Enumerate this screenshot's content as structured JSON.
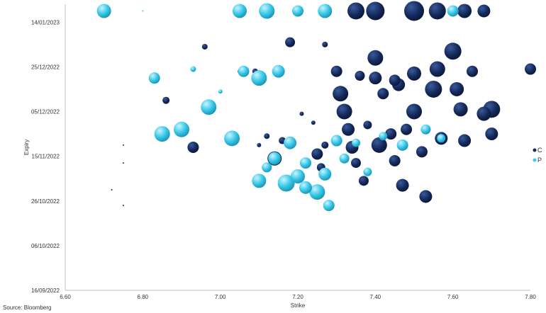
{
  "chart_data": {
    "type": "scatter",
    "title": "",
    "xlabel": "Strike",
    "ylabel": "Expiry",
    "xlim": [
      6.6,
      7.8
    ],
    "x_ticks": [
      "6.60",
      "6.80",
      "7.00",
      "7.20",
      "7.40",
      "7.60",
      "7.80"
    ],
    "y_ticks": [
      "14/01/2023",
      "25/12/2022",
      "05/12/2022",
      "15/11/2022",
      "26/10/2022",
      "06/10/2022",
      "16/09/2022"
    ],
    "ylim": [
      "16/09/2022",
      "22/01/2023"
    ],
    "grid": false,
    "legend_position": "right",
    "source": "Source: Bloomberg",
    "series": [
      {
        "name": "C",
        "color": "#14295a",
        "points": [
          [
            6.75,
            "2022-11-20",
            1
          ],
          [
            6.75,
            "2022-11-12",
            1
          ],
          [
            6.72,
            "2022-10-31",
            1
          ],
          [
            6.75,
            "2022-10-24",
            1
          ],
          [
            6.86,
            "2022-12-10",
            5
          ],
          [
            6.93,
            "2022-11-19",
            8
          ],
          [
            6.96,
            "2023-01-03",
            4
          ],
          [
            7.05,
            "2022-12-23",
            3
          ],
          [
            7.09,
            "2022-12-23",
            4
          ],
          [
            7.1,
            "2022-11-20",
            3
          ],
          [
            7.12,
            "2022-11-24",
            4
          ],
          [
            7.14,
            "2022-11-14",
            10
          ],
          [
            7.16,
            "2022-11-22",
            5
          ],
          [
            7.18,
            "2023-01-05",
            7
          ],
          [
            7.21,
            "2022-12-04",
            3
          ],
          [
            7.24,
            "2022-11-30",
            3
          ],
          [
            7.25,
            "2022-11-16",
            8
          ],
          [
            7.26,
            "2022-11-10",
            6
          ],
          [
            7.27,
            "2023-01-04",
            4
          ],
          [
            7.27,
            "2022-11-20",
            5
          ],
          [
            7.3,
            "2022-12-23",
            8
          ],
          [
            7.31,
            "2022-12-13",
            11
          ],
          [
            7.32,
            "2022-12-05",
            11
          ],
          [
            7.33,
            "2022-11-27",
            9
          ],
          [
            7.34,
            "2022-11-19",
            9
          ],
          [
            7.35,
            "2022-11-12",
            7
          ],
          [
            7.36,
            "2022-12-21",
            7
          ],
          [
            7.37,
            "2022-11-04",
            7
          ],
          [
            7.38,
            "2022-11-29",
            6
          ],
          [
            7.4,
            "2022-12-29",
            11
          ],
          [
            7.4,
            "2022-12-20",
            9
          ],
          [
            7.41,
            "2022-11-20",
            11
          ],
          [
            7.42,
            "2022-12-13",
            8
          ],
          [
            7.44,
            "2022-11-25",
            8
          ],
          [
            7.45,
            "2022-12-19",
            8
          ],
          [
            7.45,
            "2022-11-13",
            8
          ],
          [
            7.46,
            "2022-12-17",
            9
          ],
          [
            7.47,
            "2022-11-02",
            9
          ],
          [
            7.48,
            "2022-11-27",
            8
          ],
          [
            7.5,
            "2022-12-22",
            10
          ],
          [
            7.5,
            "2022-12-05",
            11
          ],
          [
            7.52,
            "2022-11-17",
            8
          ],
          [
            7.53,
            "2022-10-28",
            9
          ],
          [
            7.55,
            "2022-12-15",
            12
          ],
          [
            7.56,
            "2022-12-24",
            11
          ],
          [
            7.57,
            "2022-11-23",
            9
          ],
          [
            7.6,
            "2023-01-01",
            12
          ],
          [
            7.61,
            "2022-12-15",
            10
          ],
          [
            7.62,
            "2022-12-06",
            10
          ],
          [
            7.63,
            "2022-11-22",
            9
          ],
          [
            7.65,
            "2022-12-23",
            8
          ],
          [
            7.68,
            "2022-12-04",
            10
          ],
          [
            7.7,
            "2022-12-06",
            12
          ],
          [
            7.7,
            "2022-11-25",
            9
          ],
          [
            7.8,
            "2022-12-24",
            8
          ],
          [
            7.5,
            "2023-01-19",
            14
          ],
          [
            7.56,
            "2023-01-19",
            12
          ],
          [
            7.63,
            "2023-01-19",
            10
          ],
          [
            7.68,
            "2023-01-19",
            9
          ],
          [
            7.4,
            "2023-01-19",
            13
          ],
          [
            7.35,
            "2023-01-19",
            12
          ]
        ]
      },
      {
        "name": "P",
        "color": "#38c8e8",
        "points": [
          [
            6.7,
            "2023-01-19",
            10
          ],
          [
            6.8,
            "2023-01-19",
            1
          ],
          [
            6.83,
            "2022-12-20",
            8
          ],
          [
            6.85,
            "2022-11-25",
            11
          ],
          [
            6.9,
            "2022-11-27",
            11
          ],
          [
            6.93,
            "2022-12-24",
            4
          ],
          [
            6.97,
            "2022-12-07",
            11
          ],
          [
            7.0,
            "2022-12-14",
            3
          ],
          [
            7.03,
            "2022-11-23",
            11
          ],
          [
            7.06,
            "2022-12-23",
            8
          ],
          [
            7.1,
            "2022-12-20",
            11
          ],
          [
            7.12,
            "2022-11-10",
            7
          ],
          [
            7.15,
            "2022-12-23",
            9
          ],
          [
            7.18,
            "2022-11-21",
            9
          ],
          [
            7.2,
            "2022-11-06",
            10
          ],
          [
            7.22,
            "2022-11-12",
            8
          ],
          [
            7.25,
            "2022-10-30",
            11
          ],
          [
            7.27,
            "2022-11-07",
            9
          ],
          [
            7.28,
            "2022-10-24",
            8
          ],
          [
            7.3,
            "2022-11-22",
            8
          ],
          [
            7.32,
            "2022-11-14",
            7
          ],
          [
            7.35,
            "2022-11-21",
            6
          ],
          [
            7.38,
            "2022-11-08",
            6
          ],
          [
            7.42,
            "2022-11-24",
            6
          ],
          [
            7.47,
            "2022-11-20",
            8
          ],
          [
            7.53,
            "2022-11-27",
            7
          ],
          [
            7.57,
            "2022-11-23",
            6
          ],
          [
            7.6,
            "2023-01-19",
            8
          ],
          [
            7.05,
            "2023-01-19",
            10
          ],
          [
            7.12,
            "2023-01-19",
            11
          ],
          [
            7.2,
            "2023-01-19",
            8
          ],
          [
            7.27,
            "2023-01-19",
            10
          ],
          [
            7.17,
            "2022-11-03",
            12
          ],
          [
            7.1,
            "2022-11-04",
            10
          ],
          [
            7.22,
            "2022-11-01",
            9
          ],
          [
            7.14,
            "2022-11-14",
            9
          ]
        ]
      }
    ]
  }
}
